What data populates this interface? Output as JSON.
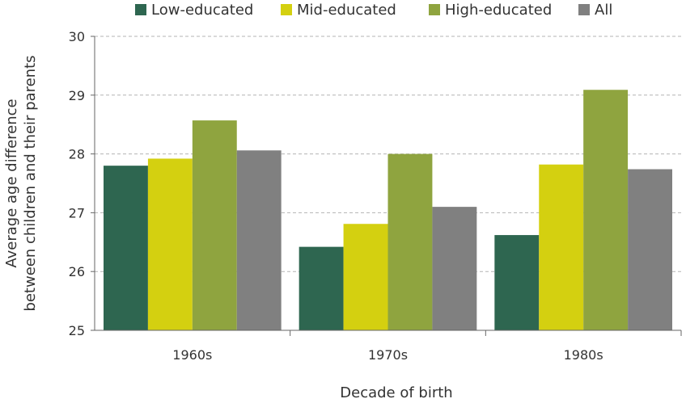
{
  "chart_data": {
    "type": "bar",
    "title": "",
    "xlabel": "Decade of birth",
    "ylabel_lines": [
      "Average age difference",
      "between children and their parents"
    ],
    "categories": [
      "1960s",
      "1970s",
      "1980s"
    ],
    "series": [
      {
        "name": "Low-educated",
        "color": "#2e6650",
        "values": [
          27.8,
          26.42,
          26.62
        ]
      },
      {
        "name": "Mid-educated",
        "color": "#d4d010",
        "values": [
          27.92,
          26.81,
          27.82
        ]
      },
      {
        "name": "High-educated",
        "color": "#8fa43f",
        "values": [
          28.57,
          28.0,
          29.09
        ]
      },
      {
        "name": "All",
        "color": "#808080",
        "values": [
          28.06,
          27.1,
          27.74
        ]
      }
    ],
    "ylim": [
      25,
      30
    ],
    "yticks": [
      "25",
      "26",
      "27",
      "28",
      "29",
      "30"
    ],
    "grid": true,
    "legend_position": "top"
  }
}
